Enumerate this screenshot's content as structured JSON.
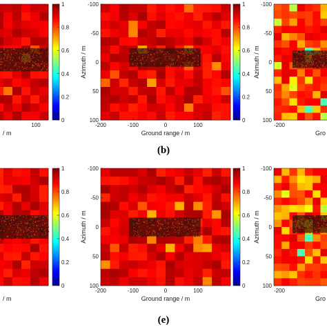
{
  "chart_data": [
    {
      "type": "heatmap",
      "panel": "left-top",
      "colorbar_ticks": [
        "0",
        "0.2",
        "0.4",
        "0.6",
        "0.8",
        "1"
      ],
      "x_ticks_visible": [
        "100"
      ],
      "xlabel_fragment": "/ m",
      "value_range": [
        0,
        1
      ],
      "dominant_value": 0.9
    },
    {
      "type": "heatmap",
      "panel": "middle-top",
      "xlabel": "Ground range / m",
      "ylabel": "Azimuth / m",
      "x_ticks": [
        "-200",
        "-100",
        "0",
        "100"
      ],
      "y_ticks": [
        "-100",
        "-50",
        "0",
        "50",
        "100"
      ],
      "colorbar_ticks": [
        "0",
        "0.2",
        "0.4",
        "0.6",
        "0.8",
        "1"
      ],
      "xlim": [
        -200,
        200
      ],
      "ylim": [
        -100,
        100
      ],
      "value_range": [
        0,
        1
      ],
      "dominant_value": 0.9
    },
    {
      "type": "heatmap",
      "panel": "right-top",
      "ylabel": "Azimuth / m",
      "xlabel_fragment": "Gro",
      "x_ticks_visible": [
        "-200"
      ],
      "y_ticks": [
        "-100",
        "-50",
        "0",
        "50",
        "100"
      ],
      "value_range": [
        0,
        1
      ],
      "dominant_value": 0.85
    },
    {
      "type": "heatmap",
      "panel": "left-bottom",
      "colorbar_ticks": [
        "0",
        "0.2",
        "0.4",
        "0.6",
        "0.8",
        "1"
      ],
      "xlabel_fragment": "/ m",
      "value_range": [
        0,
        1
      ],
      "dominant_value": 0.9
    },
    {
      "type": "heatmap",
      "panel": "middle-bottom",
      "xlabel": "Ground range / m",
      "ylabel": "Azimuth / m",
      "x_ticks": [
        "-200",
        "-100",
        "0",
        "100"
      ],
      "y_ticks": [
        "-100",
        "-50",
        "0",
        "50",
        "100"
      ],
      "colorbar_ticks": [
        "0",
        "0.2",
        "0.4",
        "0.6",
        "0.8",
        "1"
      ],
      "xlim": [
        -200,
        200
      ],
      "ylim": [
        -100,
        100
      ],
      "value_range": [
        0,
        1
      ],
      "dominant_value": 0.9
    },
    {
      "type": "heatmap",
      "panel": "right-bottom",
      "ylabel": "Azimuth / m",
      "xlabel_fragment": "Gro",
      "x_ticks_visible": [
        "-200"
      ],
      "y_ticks": [
        "-100",
        "-50",
        "0",
        "50",
        "100"
      ],
      "value_range": [
        0,
        1
      ],
      "dominant_value": 0.85
    }
  ],
  "labels": {
    "b": "(b)",
    "e": "(e)"
  },
  "colors": {
    "cmap": [
      "#000080",
      "#0000ff",
      "#00ffff",
      "#ffff00",
      "#ff0000",
      "#800000"
    ],
    "dominant_red": "#e8281c"
  }
}
